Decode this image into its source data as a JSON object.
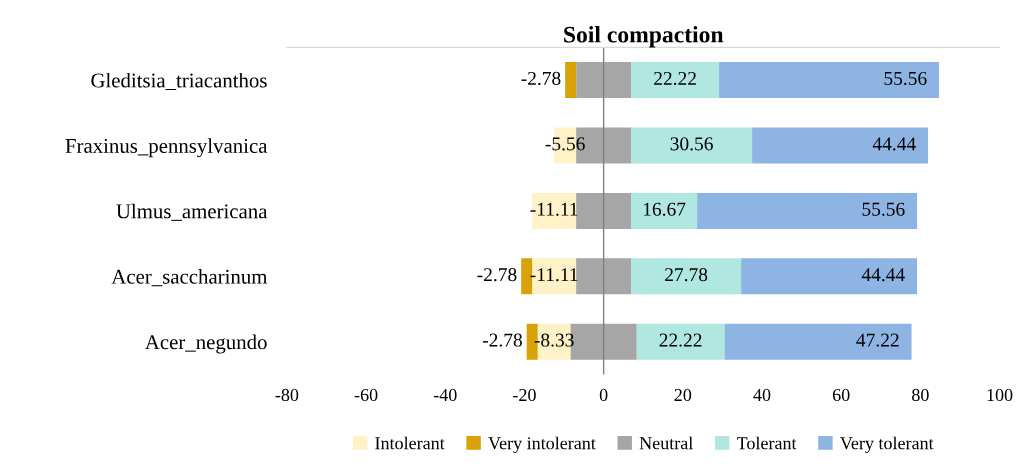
{
  "chart_data": {
    "type": "bar",
    "orientation": "horizontal",
    "title": "Soil compaction",
    "categories": [
      "Gleditsia_triacanthos",
      "Fraxinus_pennsylvanica",
      "Ulmus_americana",
      "Acer_saccharinum",
      "Acer_negundo"
    ],
    "series": [
      {
        "name": "Intolerant",
        "color": "#fff2c6",
        "values": [
          null,
          -5.56,
          -11.11,
          -11.11,
          -8.33
        ],
        "base": [
          null,
          -6.94,
          -6.94,
          -6.94,
          -8.33
        ],
        "value_labels": [
          null,
          "-5.56",
          "-11.11",
          "-11.11",
          "-8.33"
        ]
      },
      {
        "name": "Very intolerant",
        "color": "#d9a20b",
        "values": [
          -2.78,
          null,
          null,
          -2.78,
          -2.78
        ],
        "base": [
          -6.94,
          null,
          null,
          -18.05,
          -16.66
        ],
        "value_labels": [
          "-2.78",
          null,
          null,
          "-2.78",
          "-2.78"
        ]
      },
      {
        "name": "Neutral",
        "color": "#a6a6a6",
        "values": [
          13.9,
          13.9,
          13.9,
          13.9,
          16.7
        ],
        "base": [
          -6.94,
          -6.94,
          -6.94,
          -6.94,
          -8.33
        ]
      },
      {
        "name": "Tolerant",
        "color": "#b0e8e1",
        "values": [
          22.22,
          30.56,
          16.67,
          27.78,
          22.22
        ],
        "base": [
          6.94,
          6.94,
          6.94,
          6.94,
          8.33
        ],
        "value_labels": [
          "22.22",
          "30.56",
          "16.67",
          "27.78",
          "22.22"
        ]
      },
      {
        "name": "Very tolerant",
        "color": "#8eb4e3",
        "values": [
          55.56,
          44.44,
          55.56,
          44.44,
          47.22
        ],
        "base": [
          29.16,
          37.5,
          23.61,
          34.72,
          30.55
        ],
        "value_labels": [
          "55.56",
          "44.44",
          "55.56",
          "44.44",
          "47.22"
        ]
      }
    ],
    "xlim": [
      -80,
      100
    ],
    "xticks": [
      -80,
      -60,
      -40,
      -20,
      0,
      20,
      40,
      60,
      80,
      100
    ],
    "ref_lines": [
      {
        "axis": "x",
        "value": 0,
        "color": "#808080"
      }
    ],
    "grid": false,
    "legend": "bottom"
  }
}
